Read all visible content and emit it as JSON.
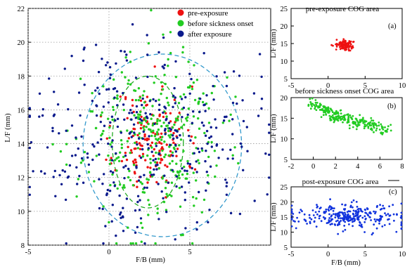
{
  "colors": {
    "pre": "#ee1111",
    "sick": "#22cc22",
    "after": "#0a1a8c",
    "ellipse": "#3399cc",
    "grid": "#9a9a9a"
  },
  "chart_data": [
    {
      "type": "scatter",
      "xlabel": "F/B (mm)",
      "ylabel": "L/F (mm)",
      "xlim": [
        -5,
        10
      ],
      "ylim": [
        8,
        22
      ],
      "xticks": [
        "-5",
        "0",
        "5"
      ],
      "yticks": [
        "8",
        "10",
        "12",
        "14",
        "16",
        "18",
        "20",
        "22"
      ],
      "grid": true,
      "legend": {
        "placement": "top-right",
        "entries": [
          {
            "label": "pre-exposure",
            "color": "#ee1111"
          },
          {
            "label": "before sickness onset",
            "color": "#22cc22"
          },
          {
            "label": "after exposure",
            "color": "#0a1a8c"
          }
        ]
      },
      "ellipses": [
        {
          "cx": 3.3,
          "cy": 13.9,
          "rx": 4.9,
          "ry": 5.4,
          "color": "#3399cc"
        },
        {
          "cx": 2.4,
          "cy": 14.1,
          "rx": 2.2,
          "ry": 3.9,
          "color": "#22aa22"
        }
      ],
      "series": [
        {
          "name": "pre-exposure",
          "color": "#ee1111",
          "center": [
            2.6,
            14.2
          ],
          "spread": [
            1.1,
            1.6
          ],
          "count": 150,
          "seed": 11
        },
        {
          "name": "before sickness onset",
          "color": "#22cc22",
          "center": [
            2.7,
            14.2
          ],
          "spread": [
            2.1,
            2.5
          ],
          "count": 330,
          "seed": 23
        },
        {
          "name": "after exposure",
          "color": "#0a1a8c",
          "center": [
            2.2,
            14.5
          ],
          "spread": [
            3.4,
            2.7
          ],
          "count": 360,
          "seed": 37
        }
      ]
    },
    {
      "type": "scatter",
      "title": "pre-exposure COG area",
      "label": "(a)",
      "xlabel": "",
      "ylabel": "L/F (mm)",
      "xlim": [
        -5,
        10
      ],
      "ylim": [
        5,
        25
      ],
      "xticks": [
        "-5",
        "0",
        "5",
        "10"
      ],
      "yticks": [
        "5",
        "10",
        "15",
        "20",
        "25"
      ],
      "series": [
        {
          "name": "",
          "color": "#ee1111",
          "center": [
            2.4,
            14.6
          ],
          "spread": [
            0.6,
            0.7
          ],
          "count": 110,
          "seed": 5
        }
      ]
    },
    {
      "type": "scatter",
      "title": "before sickness onset COG area",
      "label": "(b)",
      "xlabel": "",
      "ylabel": "L/F (mm)",
      "xlim": [
        -2,
        8
      ],
      "ylim": [
        5,
        20
      ],
      "xticks": [
        "-2",
        "0",
        "2",
        "4",
        "6",
        "8"
      ],
      "yticks": [
        "5",
        "10",
        "15",
        "20"
      ],
      "series": [
        {
          "name": "",
          "color": "#22cc22",
          "path": [
            [
              -0.2,
              18.8
            ],
            [
              1.2,
              17.0
            ],
            [
              2.3,
              15.2
            ],
            [
              3.5,
              14.5
            ],
            [
              5.0,
              13.6
            ],
            [
              6.5,
              12.0
            ]
          ],
          "spread": [
            0.35,
            1.2
          ],
          "count": 260,
          "seed": 9
        }
      ]
    },
    {
      "type": "scatter",
      "title": "post-exposure COG area",
      "label": "(c)",
      "xlabel": "F/B (mm)",
      "ylabel": "L/F (mm)",
      "xlim": [
        -5,
        10
      ],
      "ylim": [
        5,
        25
      ],
      "xticks": [
        "-5",
        "0",
        "5",
        "10"
      ],
      "yticks": [
        "5",
        "10",
        "15",
        "20",
        "25"
      ],
      "series": [
        {
          "name": "",
          "color": "#1133dd",
          "center": [
            2.5,
            15.2
          ],
          "spread": [
            3.6,
            2.0
          ],
          "count": 300,
          "seed": 17
        }
      ]
    }
  ]
}
